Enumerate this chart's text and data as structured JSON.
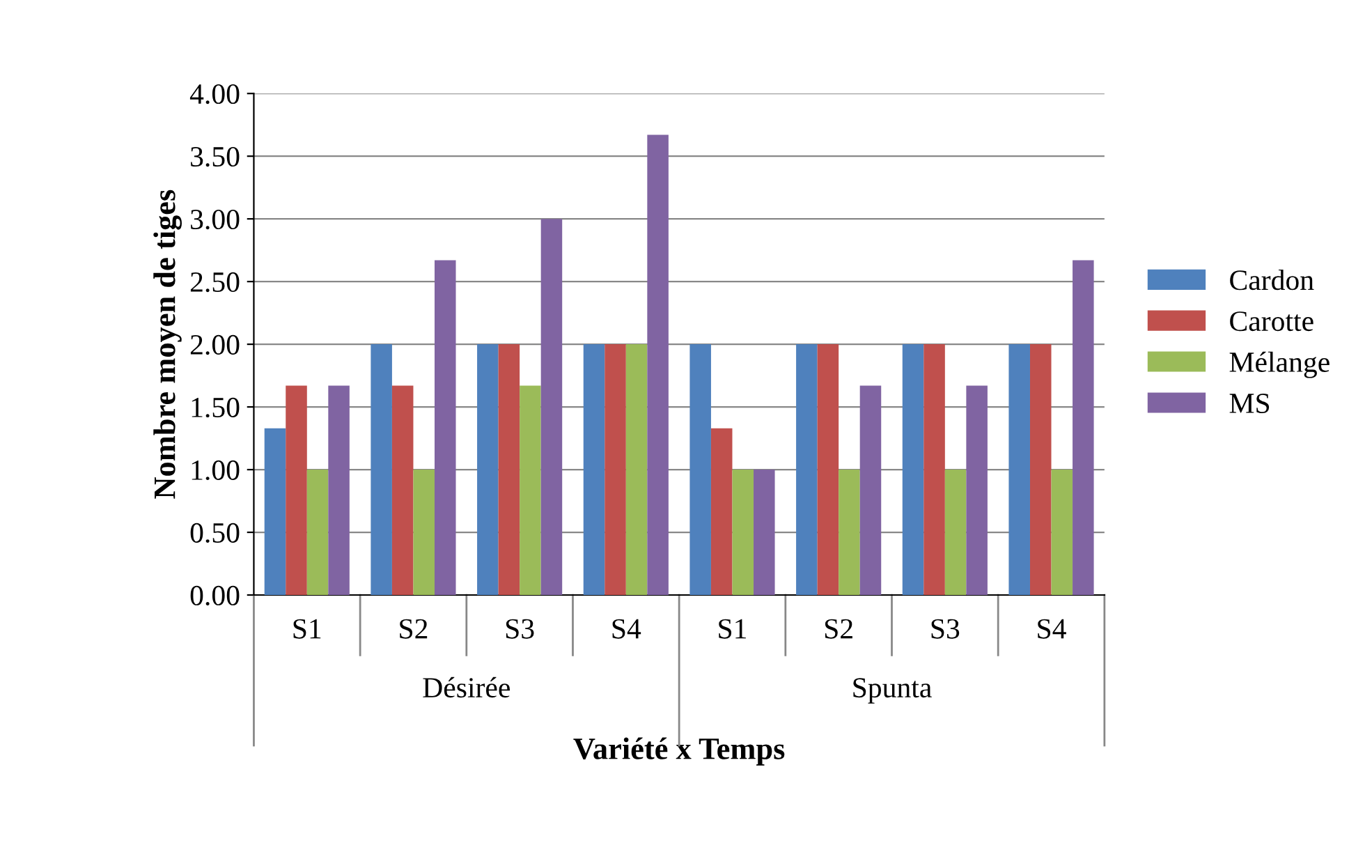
{
  "chart_data": {
    "type": "bar",
    "xlabel": "Variété x Temps",
    "ylabel": "Nombre moyen de tiges",
    "categories": [
      "S1",
      "S2",
      "S3",
      "S4",
      "S1",
      "S2",
      "S3",
      "S4"
    ],
    "annotations": [
      "Désirée",
      "Spunta"
    ],
    "series": [
      {
        "name": "Cardon",
        "color": "#4f81bd",
        "values": [
          1.33,
          2.0,
          2.0,
          2.0,
          2.0,
          2.0,
          2.0,
          2.0
        ]
      },
      {
        "name": "Carotte",
        "color": "#c0504d",
        "values": [
          1.67,
          1.67,
          2.0,
          2.0,
          1.33,
          2.0,
          2.0,
          2.0
        ]
      },
      {
        "name": "Mélange",
        "color": "#9bbb59",
        "values": [
          1.0,
          1.0,
          1.67,
          2.0,
          1.0,
          1.0,
          1.0,
          1.0
        ]
      },
      {
        "name": "MS",
        "color": "#8064a2",
        "values": [
          1.67,
          2.67,
          3.0,
          3.67,
          1.0,
          1.67,
          1.67,
          2.67
        ]
      }
    ],
    "ylim": [
      0,
      4
    ],
    "yticks": [
      {
        "value": 0,
        "label": "0.00"
      },
      {
        "value": 0.5,
        "label": "0.50"
      },
      {
        "value": 1,
        "label": "1.00"
      },
      {
        "value": 1.5,
        "label": "1.50"
      },
      {
        "value": 2,
        "label": "2.00"
      },
      {
        "value": 2.5,
        "label": "2.50"
      },
      {
        "value": 3,
        "label": "3.00"
      },
      {
        "value": 3.5,
        "label": "3.50"
      },
      {
        "value": 4,
        "label": "4.00"
      }
    ],
    "grid": "y",
    "legend": "right"
  }
}
